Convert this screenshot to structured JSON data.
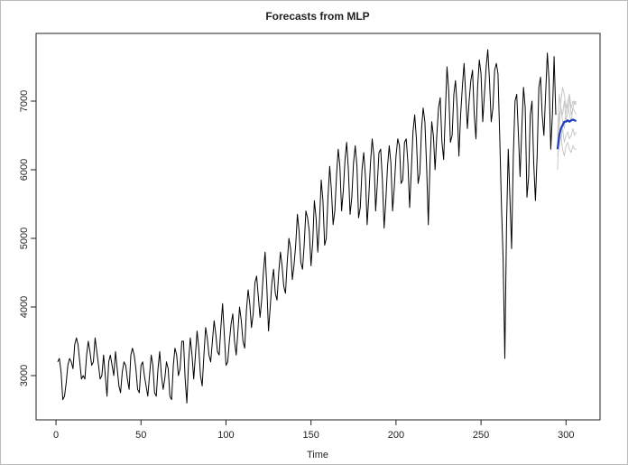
{
  "chart_data": {
    "type": "line",
    "title": "Forecasts from MLP",
    "x_label": "Time",
    "xlim": [
      -11.7,
      320
    ],
    "ylim": [
      2355,
      7987
    ],
    "xticks": [
      0,
      50,
      100,
      150,
      200,
      250,
      300
    ],
    "yticks": [
      3000,
      4000,
      5000,
      6000,
      7000
    ],
    "series": [
      {
        "color": "#000000",
        "width": 1,
        "x": [
          1,
          2,
          3,
          4,
          5,
          6,
          7,
          8,
          9,
          10,
          11,
          12,
          13,
          14,
          15,
          16,
          17,
          18,
          19,
          20,
          21,
          22,
          23,
          24,
          25,
          26,
          27,
          28,
          29,
          30,
          31,
          32,
          33,
          34,
          35,
          36,
          37,
          38,
          39,
          40,
          41,
          42,
          43,
          44,
          45,
          46,
          47,
          48,
          49,
          50,
          51,
          52,
          53,
          54,
          55,
          56,
          57,
          58,
          59,
          60,
          61,
          62,
          63,
          64,
          65,
          66,
          67,
          68,
          69,
          70,
          71,
          72,
          73,
          74,
          75,
          76,
          77,
          78,
          79,
          80,
          81,
          82,
          83,
          84,
          85,
          86,
          87,
          88,
          89,
          90,
          91,
          92,
          93,
          94,
          95,
          96,
          97,
          98,
          99,
          100,
          101,
          102,
          103,
          104,
          105,
          106,
          107,
          108,
          109,
          110,
          111,
          112,
          113,
          114,
          115,
          116,
          117,
          118,
          119,
          120,
          121,
          122,
          123,
          124,
          125,
          126,
          127,
          128,
          129,
          130,
          131,
          132,
          133,
          134,
          135,
          136,
          137,
          138,
          139,
          140,
          141,
          142,
          143,
          144,
          145,
          146,
          147,
          148,
          149,
          150,
          151,
          152,
          153,
          154,
          155,
          156,
          157,
          158,
          159,
          160,
          161,
          162,
          163,
          164,
          165,
          166,
          167,
          168,
          169,
          170,
          171,
          172,
          173,
          174,
          175,
          176,
          177,
          178,
          179,
          180,
          181,
          182,
          183,
          184,
          185,
          186,
          187,
          188,
          189,
          190,
          191,
          192,
          193,
          194,
          195,
          196,
          197,
          198,
          199,
          200,
          201,
          202,
          203,
          204,
          205,
          206,
          207,
          208,
          209,
          210,
          211,
          212,
          213,
          214,
          215,
          216,
          217,
          218,
          219,
          220,
          221,
          222,
          223,
          224,
          225,
          226,
          227,
          228,
          229,
          230,
          231,
          232,
          233,
          234,
          235,
          236,
          237,
          238,
          239,
          240,
          241,
          242,
          243,
          244,
          245,
          246,
          247,
          248,
          249,
          250,
          251,
          252,
          253,
          254,
          255,
          256,
          257,
          258,
          259,
          260,
          261,
          262,
          263,
          264,
          265,
          266,
          267,
          268,
          269,
          270,
          271,
          272,
          273,
          274,
          275,
          276,
          277,
          278,
          279,
          280,
          281,
          282,
          283,
          284,
          285,
          286,
          287,
          288,
          289,
          290,
          291,
          292,
          293,
          294
        ],
        "values": [
          3200,
          3250,
          3050,
          2650,
          2700,
          2900,
          3150,
          3250,
          3200,
          3100,
          3450,
          3550,
          3450,
          3200,
          2950,
          3000,
          2950,
          3300,
          3500,
          3350,
          3150,
          3200,
          3550,
          3350,
          3150,
          2950,
          3000,
          3300,
          3000,
          2700,
          3200,
          3300,
          3150,
          3000,
          3350,
          3100,
          2850,
          2750,
          3050,
          3200,
          3150,
          2950,
          2800,
          3300,
          3400,
          3300,
          3100,
          2800,
          2750,
          3150,
          3200,
          3000,
          2850,
          2700,
          3000,
          3300,
          3150,
          2750,
          2700,
          3100,
          3350,
          3000,
          2800,
          2950,
          3200,
          3100,
          2700,
          2650,
          3150,
          3400,
          3300,
          3000,
          3100,
          3500,
          3500,
          2950,
          2600,
          3200,
          3550,
          3300,
          2950,
          3300,
          3650,
          3400,
          3000,
          2850,
          3300,
          3700,
          3550,
          3300,
          3200,
          3500,
          3800,
          3600,
          3350,
          3300,
          3700,
          4050,
          3600,
          3150,
          3200,
          3500,
          3750,
          3900,
          3500,
          3300,
          3650,
          4000,
          3800,
          3500,
          3400,
          3950,
          4250,
          4050,
          3700,
          3900,
          4350,
          4450,
          4150,
          3850,
          4100,
          4500,
          4800,
          4300,
          3650,
          4000,
          4350,
          4550,
          4200,
          4100,
          4500,
          4800,
          4600,
          4300,
          4200,
          4650,
          5000,
          4850,
          4400,
          4600,
          4900,
          5350,
          5100,
          4650,
          4550,
          4900,
          5400,
          5300,
          5100,
          4600,
          4950,
          5550,
          5300,
          4800,
          5250,
          5850,
          5550,
          4900,
          5000,
          5600,
          6050,
          5700,
          5200,
          5400,
          5900,
          6300,
          6050,
          5400,
          5700,
          6150,
          6400,
          6000,
          5350,
          5600,
          6100,
          6350,
          6050,
          5300,
          5450,
          6000,
          6250,
          5900,
          5200,
          5600,
          6100,
          6450,
          6200,
          5400,
          5800,
          6250,
          6300,
          5850,
          5150,
          5550,
          6050,
          6350,
          6100,
          5400,
          5750,
          6200,
          6450,
          6350,
          5800,
          5850,
          6400,
          6450,
          6100,
          5450,
          6000,
          6550,
          6800,
          6450,
          5800,
          5950,
          6600,
          6900,
          6700,
          6050,
          5200,
          6100,
          6700,
          6500,
          6000,
          6500,
          6900,
          7050,
          6400,
          6150,
          6800,
          7500,
          7150,
          6400,
          6500,
          7100,
          7300,
          6900,
          6200,
          6800,
          7200,
          7550,
          7100,
          6600,
          7000,
          7300,
          7450,
          6800,
          6450,
          7200,
          7600,
          7400,
          6700,
          7100,
          7500,
          7750,
          7300,
          6700,
          6900,
          7450,
          7550,
          7400,
          6500,
          5500,
          4700,
          3250,
          5200,
          6300,
          5600,
          4850,
          6200,
          7000,
          7100,
          6500,
          5900,
          6600,
          7200,
          6900,
          5600,
          5900,
          6800,
          7000,
          6100,
          5550,
          6200,
          7200,
          7350,
          6800,
          6500,
          7100,
          7700,
          7300,
          6300,
          6800,
          7650,
          6800
        ]
      },
      {
        "color": "#c8c8c8",
        "width": 1,
        "x": [
          295,
          296,
          297,
          298,
          299,
          300,
          301,
          302,
          303,
          304,
          305,
          306
        ],
        "values": [
          6000,
          6600,
          7000,
          7200,
          7100,
          6900,
          7000,
          7100,
          6900,
          7000,
          6950,
          7000
        ]
      },
      {
        "color": "#c8c8c8",
        "width": 1,
        "x": [
          295,
          296,
          297,
          298,
          299,
          300,
          301,
          302,
          303,
          304,
          305,
          306
        ],
        "values": [
          6200,
          6350,
          6500,
          6300,
          6200,
          6350,
          6400,
          6300,
          6250,
          6350,
          6300,
          6300
        ]
      },
      {
        "color": "#c8c8c8",
        "width": 1,
        "x": [
          295,
          296,
          297,
          298,
          299,
          300,
          301,
          302,
          303,
          304,
          305,
          306
        ],
        "values": [
          6400,
          6800,
          6900,
          6700,
          6600,
          6850,
          6950,
          6800,
          6700,
          6900,
          6850,
          6800
        ]
      },
      {
        "color": "#c8c8c8",
        "width": 1,
        "x": [
          295,
          296,
          297,
          298,
          299,
          300,
          301,
          302,
          303,
          304,
          305,
          306
        ],
        "values": [
          6300,
          6500,
          6450,
          6600,
          6400,
          6500,
          6550,
          6450,
          6500,
          6600,
          6500,
          6550
        ]
      },
      {
        "color": "#c8c8c8",
        "width": 1,
        "x": [
          295,
          296,
          297,
          298,
          299,
          300,
          301,
          302,
          303,
          304,
          305,
          306
        ],
        "values": [
          6500,
          7100,
          6900,
          6800,
          7000,
          6700,
          6850,
          7050,
          6800,
          6900,
          7000,
          6950
        ]
      },
      {
        "color": "#1f3fbf",
        "width": 2.2,
        "x": [
          295,
          296,
          297,
          298,
          299,
          300,
          301,
          302,
          303,
          304,
          305,
          306
        ],
        "values": [
          6300,
          6500,
          6600,
          6650,
          6700,
          6700,
          6720,
          6700,
          6720,
          6730,
          6720,
          6710
        ]
      }
    ]
  }
}
